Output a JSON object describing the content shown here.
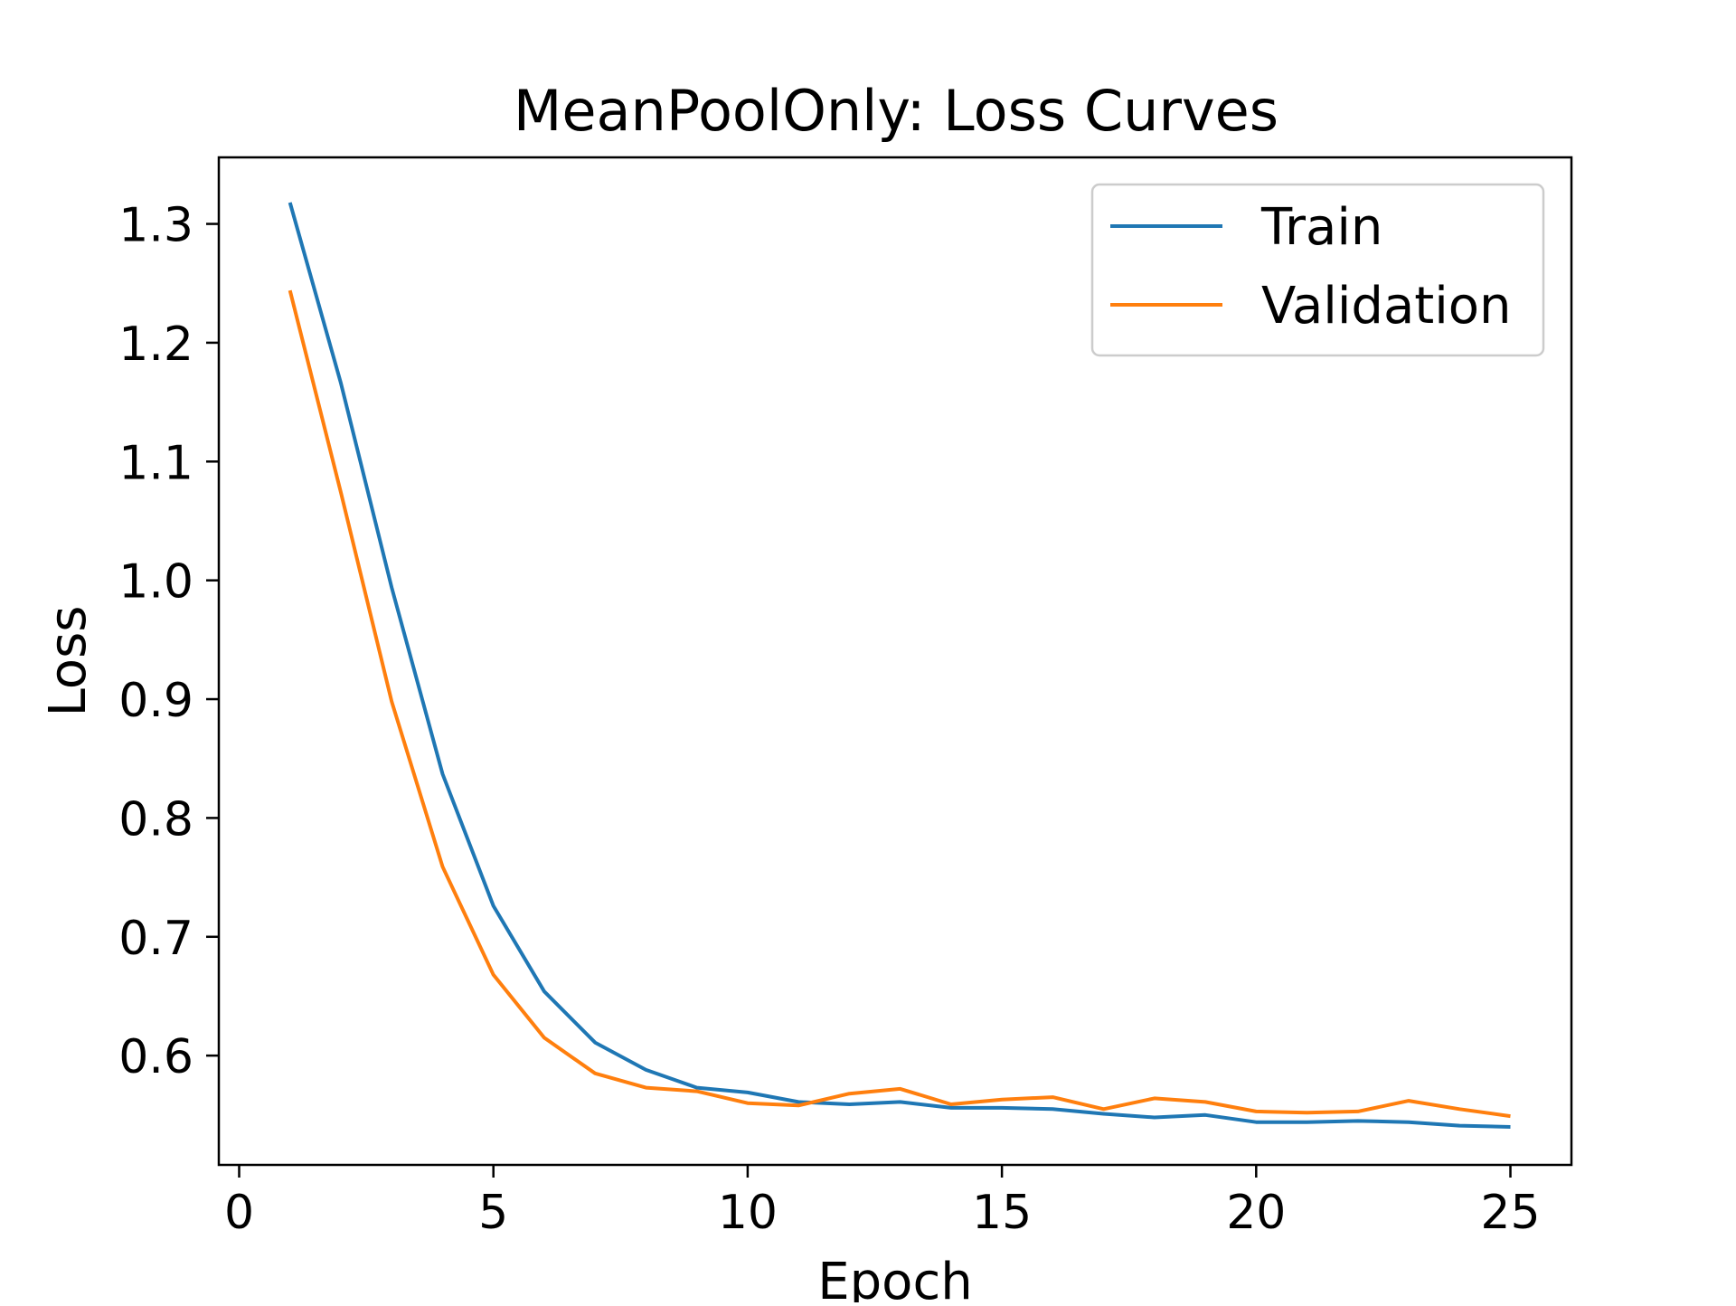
{
  "chart_data": {
    "type": "line",
    "title": "MeanPoolOnly: Loss Curves",
    "xlabel": "Epoch",
    "ylabel": "Loss",
    "xlim": [
      -0.4,
      26.2
    ],
    "ylim": [
      0.508,
      1.356
    ],
    "x_ticks": [
      0,
      5,
      10,
      15,
      20,
      25
    ],
    "y_ticks": [
      0.6,
      0.7,
      0.8,
      0.9,
      1.0,
      1.1,
      1.2,
      1.3
    ],
    "x_tick_labels": [
      "0",
      "5",
      "10",
      "15",
      "20",
      "25"
    ],
    "y_tick_labels": [
      "0.6",
      "0.7",
      "0.8",
      "0.9",
      "1.0",
      "1.1",
      "1.2",
      "1.3"
    ],
    "grid": false,
    "legend": "top-right",
    "x": [
      1,
      2,
      3,
      4,
      5,
      6,
      7,
      8,
      9,
      10,
      11,
      12,
      13,
      14,
      15,
      16,
      17,
      18,
      19,
      20,
      21,
      22,
      23,
      24,
      25
    ],
    "series": [
      {
        "name": "Train",
        "color": "#1f77b4",
        "values": [
          1.318,
          1.166,
          0.994,
          0.837,
          0.726,
          0.654,
          0.611,
          0.588,
          0.573,
          0.569,
          0.561,
          0.559,
          0.561,
          0.556,
          0.556,
          0.555,
          0.551,
          0.548,
          0.55,
          0.544,
          0.544,
          0.545,
          0.544,
          0.541,
          0.54
        ]
      },
      {
        "name": "Validation",
        "color": "#ff7f0e",
        "values": [
          1.244,
          1.074,
          0.898,
          0.759,
          0.668,
          0.615,
          0.585,
          0.573,
          0.57,
          0.56,
          0.558,
          0.568,
          0.572,
          0.559,
          0.563,
          0.565,
          0.555,
          0.564,
          0.561,
          0.553,
          0.552,
          0.553,
          0.562,
          0.555,
          0.549
        ]
      }
    ]
  }
}
